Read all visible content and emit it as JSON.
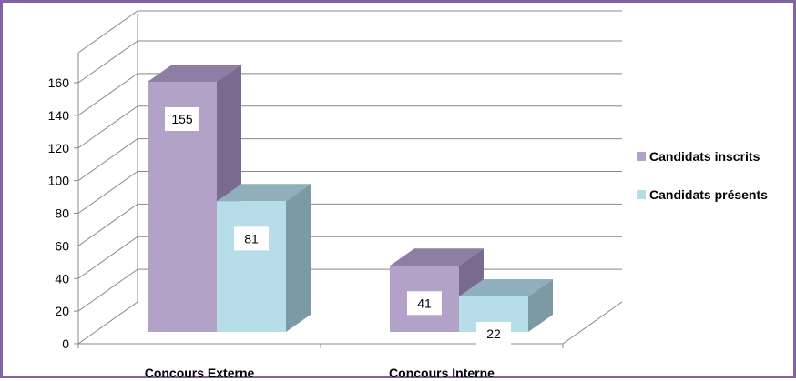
{
  "chart_data": {
    "type": "bar",
    "categories": [
      "Concours Externe",
      "Concours Interne"
    ],
    "series": [
      {
        "name": "Candidats inscrits",
        "values": [
          155,
          41
        ],
        "color": "#b3a2c7",
        "side_color": "#7b6a8f",
        "top_color": "#8f7ea3"
      },
      {
        "name": "Candidats présents",
        "values": [
          81,
          22
        ],
        "color": "#b7dde8",
        "side_color": "#7b9aa3",
        "top_color": "#8fb0ba"
      }
    ],
    "ylim": [
      0,
      160
    ],
    "yticks": [
      0,
      20,
      40,
      60,
      80,
      100,
      120,
      140,
      160
    ],
    "grid": true,
    "legend_position": "right",
    "view": "3d-clustered-column"
  }
}
